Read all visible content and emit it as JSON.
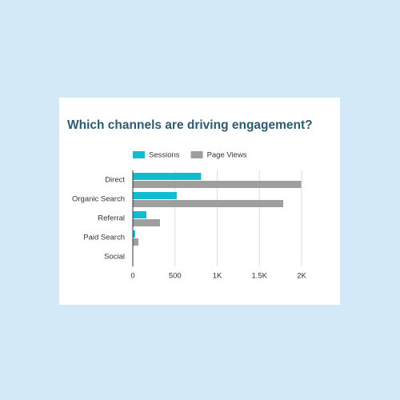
{
  "chart_data": {
    "type": "hbar",
    "title": "Which channels are driving engagement?",
    "categories": [
      "Direct",
      "Organic Search",
      "Referral",
      "Paid Search",
      "Social"
    ],
    "series": [
      {
        "name": "Sessions",
        "color": "#12bcd0",
        "values": [
          810,
          521,
          161,
          28,
          2
        ]
      },
      {
        "name": "Page Views",
        "color": "#9e9e9e",
        "values": [
          1995,
          1782,
          322,
          66,
          3
        ]
      }
    ],
    "xlim": [
      0,
      2000
    ],
    "xticks": [
      0,
      500,
      {
        "value": 1000,
        "label": "1K"
      },
      {
        "value": 1500,
        "label": "1.5K"
      },
      {
        "value": 2000,
        "label": "2K"
      }
    ],
    "grid": true
  }
}
